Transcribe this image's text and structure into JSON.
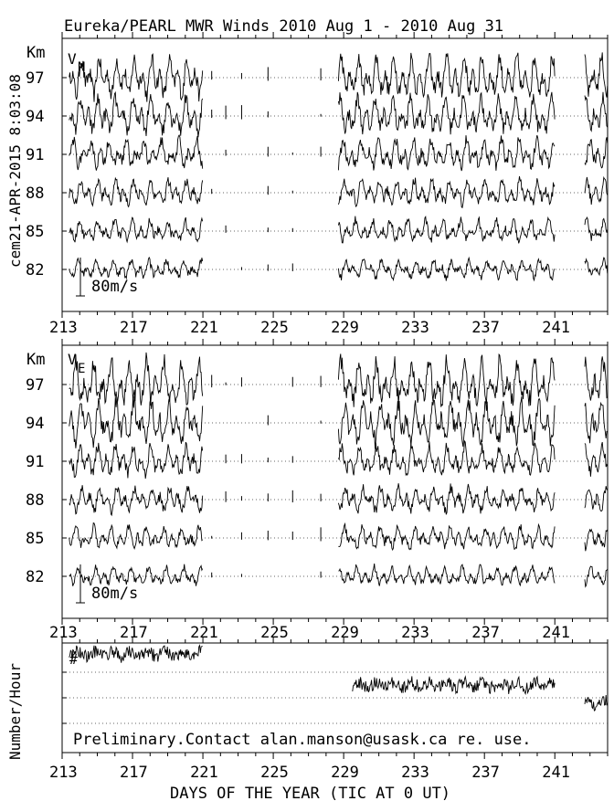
{
  "title": "Eureka/PEARL MWR Winds 2010 Aug  1 - 2010 Aug 31",
  "side_label": "cem21-APR-2015  8:03:08",
  "footer_note": "Preliminary.Contact alan.manson@usask.ca re. use.",
  "xlabel": "DAYS OF THE YEAR (TIC AT 0 UT)",
  "chart_data": [
    {
      "type": "line",
      "panel": "north",
      "component_label": "V",
      "component_sub": "N",
      "ylabel": "Km",
      "heights": [
        97,
        94,
        91,
        88,
        85,
        82
      ],
      "height_tick_labels": [
        "97",
        "94",
        "91",
        "88",
        "85",
        "82"
      ],
      "scale_bar_label": "80m/s",
      "xlim": [
        213,
        244
      ],
      "x_tick_labels": [
        "213",
        "217",
        "221",
        "225",
        "229",
        "233",
        "237",
        "241"
      ],
      "data_segments_days": [
        [
          213.4,
          221.0
        ],
        [
          228.7,
          241.0
        ],
        [
          242.7,
          244.0
        ]
      ],
      "sparse_points_days": [
        221.5,
        222.3,
        223.2,
        224.7,
        226.1,
        227.7
      ],
      "grid": true,
      "description_of_values": "hourly wind perturbations, dominant 12-24h tidal oscillations, amplitudes roughly ±40 m/s"
    },
    {
      "type": "line",
      "panel": "east",
      "component_label": "V",
      "component_sub": "E",
      "ylabel": "Km",
      "heights": [
        97,
        94,
        91,
        88,
        85,
        82
      ],
      "height_tick_labels": [
        "97",
        "94",
        "91",
        "88",
        "85",
        "82"
      ],
      "scale_bar_label": "80m/s",
      "xlim": [
        213,
        244
      ],
      "x_tick_labels": [
        "213",
        "217",
        "221",
        "225",
        "229",
        "233",
        "237",
        "241"
      ],
      "data_segments_days": [
        [
          213.4,
          221.0
        ],
        [
          228.7,
          241.0
        ],
        [
          242.7,
          244.0
        ]
      ],
      "sparse_points_days": [
        221.5,
        222.3,
        223.2,
        224.7,
        226.1,
        227.7
      ],
      "grid": true
    },
    {
      "type": "line",
      "panel": "count",
      "component_label": "#",
      "ylabel": "Number/Hour",
      "xlim": [
        213,
        244
      ],
      "x_tick_labels": [
        "213",
        "217",
        "221",
        "225",
        "229",
        "233",
        "237",
        "241"
      ],
      "data_segments_days": [
        [
          213.4,
          221.0
        ],
        [
          229.5,
          241.0
        ],
        [
          242.7,
          244.0
        ]
      ],
      "grid": true
    }
  ]
}
